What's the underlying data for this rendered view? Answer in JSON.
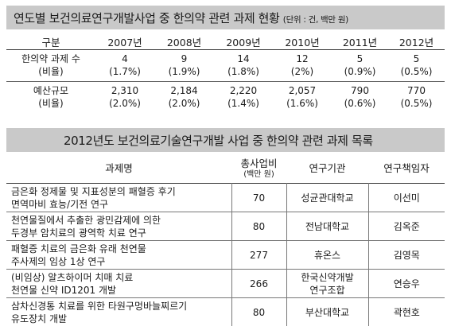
{
  "table1": {
    "title": "연도별 보건의료연구개발사업 중 한의약 관련 과제 현황",
    "unit": "(단위 : 건, 백만 원)",
    "header": [
      "구분",
      "2007년",
      "2008년",
      "2009년",
      "2010년",
      "2011년",
      "2012년"
    ],
    "rows": [
      {
        "label": "한의약 과제 수",
        "values": [
          "4",
          "9",
          "14",
          "12",
          "5",
          "5"
        ]
      },
      {
        "label": "(비율)",
        "values": [
          "(1.7%)",
          "(1.9%)",
          "(1.8%)",
          "(2%)",
          "(0.9%)",
          "(0.5%)"
        ]
      },
      {
        "label": "예산규모",
        "values": [
          "2,310",
          "2,184",
          "2,220",
          "2,057",
          "790",
          "770"
        ]
      },
      {
        "label": "(비율)",
        "values": [
          "(2.0%)",
          "(2.0%)",
          "(1.4%)",
          "(1.6%)",
          "(0.6%)",
          "(0.5%)"
        ]
      }
    ]
  },
  "table2": {
    "title": "2012년도 보건의료기술연구개발 사업 중 한의약 관련 과제 목록",
    "header": {
      "project": "과제명",
      "budget": "총사업비",
      "budget_unit": "(백만 원)",
      "org": "연구기관",
      "lead": "연구책임자"
    },
    "rows": [
      {
        "project1": "금은화 정제물 및 지표성분의 패혈증 후기",
        "project2": "면역마비 효능/기전 연구",
        "budget": "70",
        "org1": "성균관대학교",
        "org2": "",
        "lead": "이선미"
      },
      {
        "project1": "천연물질에서 추출한 광민감제에 의한",
        "project2": "두경부 암치료의 광역학 치료 연구",
        "budget": "80",
        "org1": "전남대학교",
        "org2": "",
        "lead": "김옥준"
      },
      {
        "project1": "패혈증 치료의 금은화 유래 천연물",
        "project2": "주사제의 임상 1상 연구",
        "budget": "277",
        "org1": "휴온스",
        "org2": "",
        "lead": "김영목"
      },
      {
        "project1": "(비임상) 알츠하이머 치매 치료",
        "project2": "천연물 신약 ID1201 개발",
        "budget": "266",
        "org1": "한국신약개발",
        "org2": "연구조합",
        "lead": "연승우"
      },
      {
        "project1": "삼차신경통 치료를 위한 타원구멍바늘찌르기",
        "project2": "유도장치 개발",
        "budget": "80",
        "org1": "부산대학교",
        "org2": "",
        "lead": "곽현호"
      }
    ]
  }
}
